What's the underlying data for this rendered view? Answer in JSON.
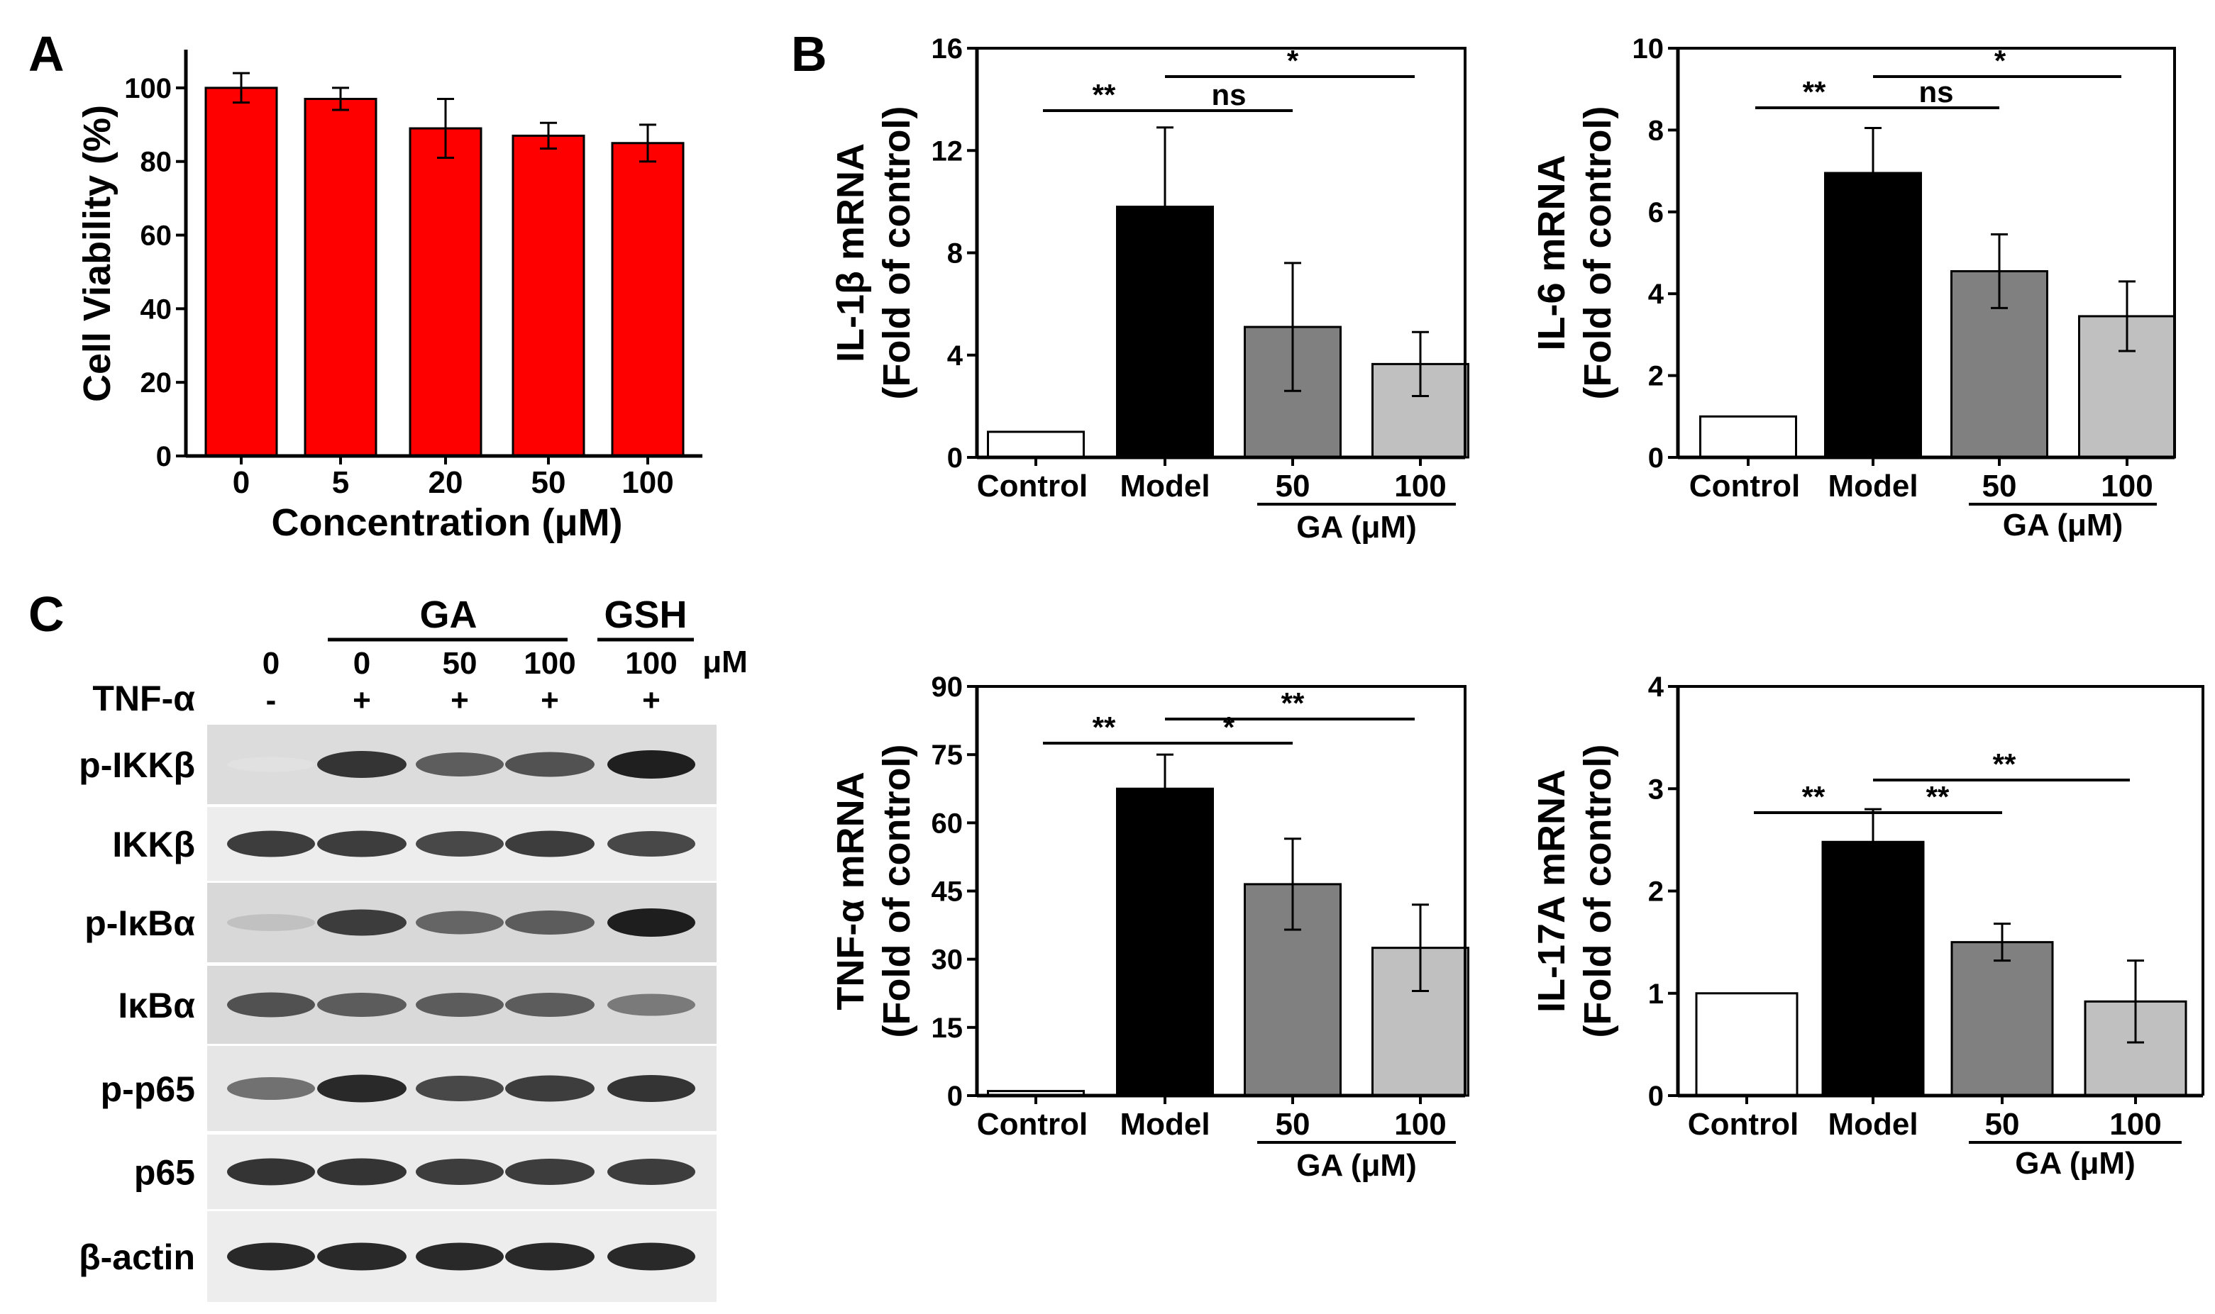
{
  "panels": {
    "A": "A",
    "B": "B",
    "C": "C"
  },
  "colors": {
    "red": "#ff0000",
    "control": "#ffffff",
    "model": "#000000",
    "ga50": "#808080",
    "ga100": "#c0c0c0"
  },
  "chart_data": [
    {
      "id": "viability",
      "type": "bar",
      "xlabel": "Concentration (μM)",
      "ylabel": "Cell Viability (%)",
      "categories": [
        "0",
        "5",
        "20",
        "50",
        "100"
      ],
      "values": [
        100,
        97,
        89,
        87,
        85
      ],
      "errors": [
        4,
        3,
        8,
        3.5,
        5
      ],
      "ylim": [
        0,
        110
      ],
      "yticks": [
        0,
        20,
        40,
        60,
        80,
        100
      ],
      "bar_color": "#ff0000"
    },
    {
      "id": "il1b",
      "type": "bar",
      "ylabel_line1": "IL-1β mRNA",
      "ylabel_line2": "(Fold of control)",
      "categories": [
        "Control",
        "Model",
        "50",
        "100"
      ],
      "group_label": "GA (μM)",
      "values": [
        1.0,
        9.8,
        5.1,
        3.65
      ],
      "errors": [
        0,
        3.1,
        2.5,
        1.25
      ],
      "ylim": [
        0,
        16
      ],
      "yticks": [
        0,
        4,
        8,
        12,
        16
      ],
      "significance": [
        {
          "label": "**",
          "from": 0,
          "to": 1
        },
        {
          "label": "ns",
          "from": 1,
          "to": 2
        },
        {
          "label": "*",
          "from": 1,
          "to": 3
        }
      ]
    },
    {
      "id": "il6",
      "type": "bar",
      "ylabel_line1": "IL-6 mRNA",
      "ylabel_line2": "(Fold of control)",
      "categories": [
        "Control",
        "Model",
        "50",
        "100"
      ],
      "group_label": "GA (μM)",
      "values": [
        1.0,
        6.95,
        4.55,
        3.45
      ],
      "errors": [
        0,
        1.1,
        0.9,
        0.85
      ],
      "ylim": [
        0,
        10
      ],
      "yticks": [
        0,
        2,
        4,
        6,
        8,
        10
      ],
      "significance": [
        {
          "label": "**",
          "from": 0,
          "to": 1
        },
        {
          "label": "ns",
          "from": 1,
          "to": 2
        },
        {
          "label": "*",
          "from": 1,
          "to": 3
        }
      ]
    },
    {
      "id": "tnfa",
      "type": "bar",
      "ylabel_line1": "TNF-α mRNA",
      "ylabel_line2": "(Fold of control)",
      "categories": [
        "Control",
        "Model",
        "50",
        "100"
      ],
      "group_label": "GA (μM)",
      "values": [
        1.0,
        67.5,
        46.5,
        32.5
      ],
      "errors": [
        0,
        7.5,
        10,
        9.5
      ],
      "ylim": [
        0,
        90
      ],
      "yticks": [
        0,
        15,
        30,
        45,
        60,
        75,
        90
      ],
      "significance": [
        {
          "label": "**",
          "from": 0,
          "to": 1
        },
        {
          "label": "*",
          "from": 1,
          "to": 2
        },
        {
          "label": "**",
          "from": 1,
          "to": 3
        }
      ]
    },
    {
      "id": "il17a",
      "type": "bar",
      "ylabel_line1": "IL-17A mRNA",
      "ylabel_line2": "(Fold of control)",
      "categories": [
        "Control",
        "Model",
        "50",
        "100"
      ],
      "group_label": "GA (μM)",
      "values": [
        1.0,
        2.48,
        1.5,
        0.92
      ],
      "errors": [
        0,
        0.32,
        0.18,
        0.4
      ],
      "ylim": [
        0,
        4
      ],
      "yticks": [
        0,
        1,
        2,
        3,
        4
      ],
      "significance": [
        {
          "label": "**",
          "from": 0,
          "to": 1
        },
        {
          "label": "**",
          "from": 1,
          "to": 2
        },
        {
          "label": "**",
          "from": 1,
          "to": 3
        }
      ]
    }
  ],
  "blot": {
    "group_ga": "GA",
    "group_gsh": "GSH",
    "unit": "μM",
    "doses": [
      "0",
      "0",
      "50",
      "100",
      "100"
    ],
    "tnf_label": "TNF-α",
    "tnf_signs": [
      "-",
      "+",
      "+",
      "+",
      "+"
    ],
    "rows": [
      {
        "label": "p-IKKβ",
        "intensities": [
          0.05,
          0.9,
          0.7,
          0.75,
          1.0
        ]
      },
      {
        "label": "IKKβ",
        "intensities": [
          0.85,
          0.85,
          0.8,
          0.85,
          0.8
        ]
      },
      {
        "label": "p-IκBα",
        "intensities": [
          0.2,
          0.85,
          0.65,
          0.7,
          1.0
        ]
      },
      {
        "label": "IκBα",
        "intensities": [
          0.75,
          0.7,
          0.7,
          0.7,
          0.55
        ]
      },
      {
        "label": "p-p65",
        "intensities": [
          0.6,
          0.95,
          0.8,
          0.85,
          0.9
        ]
      },
      {
        "label": "p65",
        "intensities": [
          0.9,
          0.9,
          0.85,
          0.85,
          0.85
        ]
      },
      {
        "label": "β-actin",
        "intensities": [
          0.95,
          0.95,
          0.95,
          0.95,
          0.95
        ]
      }
    ]
  }
}
